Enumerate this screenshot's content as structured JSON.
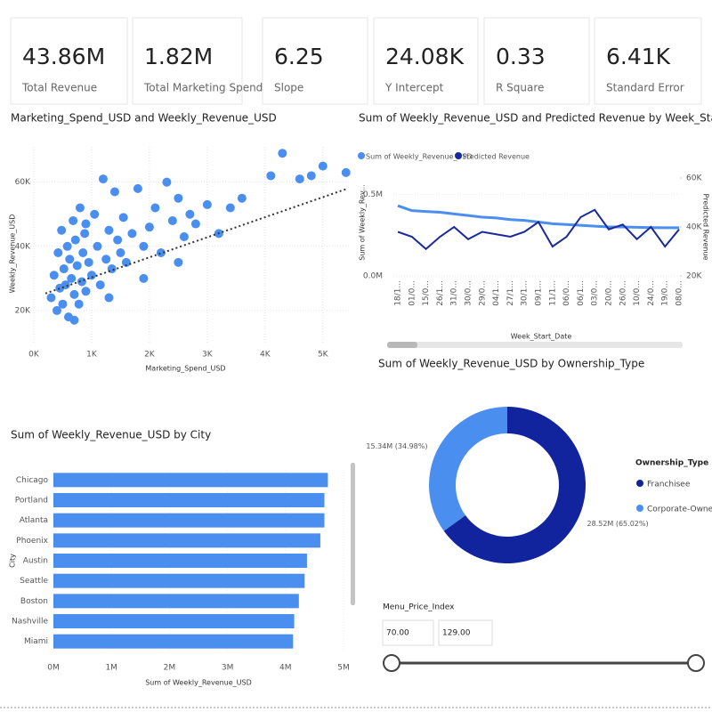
{
  "cards": [
    {
      "value": "43.86M",
      "label": "Total Revenue"
    },
    {
      "value": "1.82M",
      "label": "Total Marketing Spend"
    },
    {
      "value": "6.25",
      "label": "Slope"
    },
    {
      "value": "24.08K",
      "label": "Y Intercept"
    },
    {
      "value": "0.33",
      "label": "R Square"
    },
    {
      "value": "6.41K",
      "label": "Standard Error"
    }
  ],
  "chart_data": [
    {
      "type": "scatter",
      "title": "Marketing_Spend_USD and Weekly_Revenue_USD",
      "x_label": "Marketing_Spend_USD",
      "y_label": "Weekly_Revenue_USD",
      "color": "#4a8ef0",
      "grid": true,
      "x": [
        300,
        350,
        400,
        420,
        450,
        480,
        500,
        520,
        550,
        580,
        600,
        620,
        650,
        680,
        700,
        720,
        750,
        780,
        800,
        830,
        850,
        880,
        900,
        950,
        1000,
        1050,
        1100,
        1150,
        1200,
        1250,
        1300,
        1350,
        1400,
        1450,
        1500,
        1550,
        1600,
        1700,
        1800,
        1900,
        2000,
        2100,
        2200,
        2300,
        2400,
        2500,
        2600,
        2700,
        2800,
        3000,
        3200,
        3400,
        3600,
        4100,
        4300,
        4600,
        4800,
        5000,
        5400,
        1300,
        900,
        700,
        2500,
        1900
      ],
      "y": [
        24000,
        31000,
        20000,
        38000,
        27000,
        45000,
        22000,
        33000,
        28000,
        40000,
        18000,
        36000,
        30000,
        48000,
        25000,
        42000,
        34000,
        22000,
        52000,
        29000,
        38000,
        44000,
        26000,
        35000,
        31000,
        50000,
        40000,
        28000,
        61000,
        36000,
        45000,
        33000,
        57000,
        42000,
        38000,
        49000,
        35000,
        44000,
        58000,
        40000,
        46000,
        52000,
        38000,
        60000,
        48000,
        55000,
        43000,
        50000,
        47000,
        53000,
        44000,
        52000,
        55000,
        62000,
        69000,
        61000,
        62000,
        65000,
        63000,
        24000,
        47000,
        17000,
        35000,
        30000
      ],
      "trend_x": [
        200,
        5400
      ],
      "trend_y": [
        25330,
        57830
      ],
      "trend_color": "#333333",
      "xlim": [
        -200,
        5450
      ],
      "ylim": [
        10000,
        71000
      ],
      "xticks": [
        {
          "value": 0,
          "label": "0K"
        },
        {
          "value": 1000,
          "label": "1K"
        },
        {
          "value": 2000,
          "label": "2K"
        },
        {
          "value": 3000,
          "label": "3K"
        },
        {
          "value": 4000,
          "label": "4K"
        },
        {
          "value": 5000,
          "label": "5K"
        }
      ],
      "yticks": [
        {
          "value": 20000,
          "label": "20K"
        },
        {
          "value": 40000,
          "label": "40K"
        },
        {
          "value": 60000,
          "label": "60K"
        }
      ]
    },
    {
      "type": "line",
      "title": "Sum of Weekly_Revenue_USD and Predicted Revenue by Week_Start_Date",
      "x_label": "Week_Start_Date",
      "y_label": "Sum of Weekly_Rev...",
      "y2_label": "Predicted Revenue",
      "categories": [
        "18/1...",
        "01/0...",
        "15/0...",
        "26/1...",
        "31/0...",
        "30/0...",
        "29/0...",
        "04/1...",
        "27/1...",
        "30/1...",
        "09/1...",
        "11/1...",
        "06/0...",
        "06/1...",
        "03/0...",
        "20/0...",
        "26/0...",
        "10/0...",
        "24/0...",
        "19/0...",
        "08/0..."
      ],
      "series": [
        {
          "name": "Sum of Weekly_Revenue_USD",
          "color": "#4a8ef0",
          "values": [
            430000,
            400000,
            395000,
            390000,
            380000,
            370000,
            360000,
            355000,
            345000,
            340000,
            330000,
            320000,
            315000,
            310000,
            305000,
            300000,
            300000,
            298000,
            296000,
            295000,
            295000
          ]
        },
        {
          "name": "Predicted Revenue",
          "color": "#1a2a9a",
          "axis": "y2",
          "values": [
            38000,
            36000,
            31000,
            36000,
            40000,
            35000,
            38000,
            37000,
            36000,
            38000,
            42000,
            32000,
            36000,
            44000,
            47000,
            39000,
            41000,
            35000,
            40000,
            32000,
            39000
          ]
        }
      ],
      "ylim": [
        0,
        600000
      ],
      "yticks": [
        {
          "value": 0,
          "label": "0.0M"
        },
        {
          "value": 500000,
          "label": "0.5M"
        }
      ],
      "y2lim": [
        20000,
        60000
      ],
      "y2ticks": [
        {
          "value": 20000,
          "label": "20K"
        },
        {
          "value": 40000,
          "label": "40K"
        },
        {
          "value": 60000,
          "label": "60K"
        }
      ],
      "legend": "top-left"
    },
    {
      "type": "donut",
      "title": "Sum of Weekly_Revenue_USD by Ownership_Type",
      "legend_title": "Ownership_Type",
      "categories": [
        "Franchisee",
        "Corporate-Owned"
      ],
      "values": [
        28520000,
        15340000
      ],
      "value_labels": [
        "28.52M (65.02%)",
        "15.34M (34.98%)"
      ],
      "colors": [
        "#12239e",
        "#4a8ef0"
      ]
    },
    {
      "type": "bar",
      "orientation": "horizontal",
      "title": "Sum of Weekly_Revenue_USD by City",
      "x_label": "Sum of Weekly_Revenue_USD",
      "y_label": "City",
      "color": "#4a8ef0",
      "categories": [
        "Chicago",
        "Portland",
        "Atlanta",
        "Phoenix",
        "Austin",
        "Seattle",
        "Boston",
        "Nashville",
        "Miami"
      ],
      "values": [
        4730000,
        4670000,
        4670000,
        4600000,
        4370000,
        4330000,
        4230000,
        4150000,
        4130000
      ],
      "xlim": [
        0,
        5000000
      ],
      "xticks": [
        {
          "value": 0,
          "label": "0M"
        },
        {
          "value": 1000000,
          "label": "1M"
        },
        {
          "value": 2000000,
          "label": "2M"
        },
        {
          "value": 3000000,
          "label": "3M"
        },
        {
          "value": 4000000,
          "label": "4M"
        },
        {
          "value": 5000000,
          "label": "5M"
        }
      ]
    }
  ],
  "slicer": {
    "title": "Menu_Price_Index",
    "min": "70.00",
    "max": "129.00"
  }
}
